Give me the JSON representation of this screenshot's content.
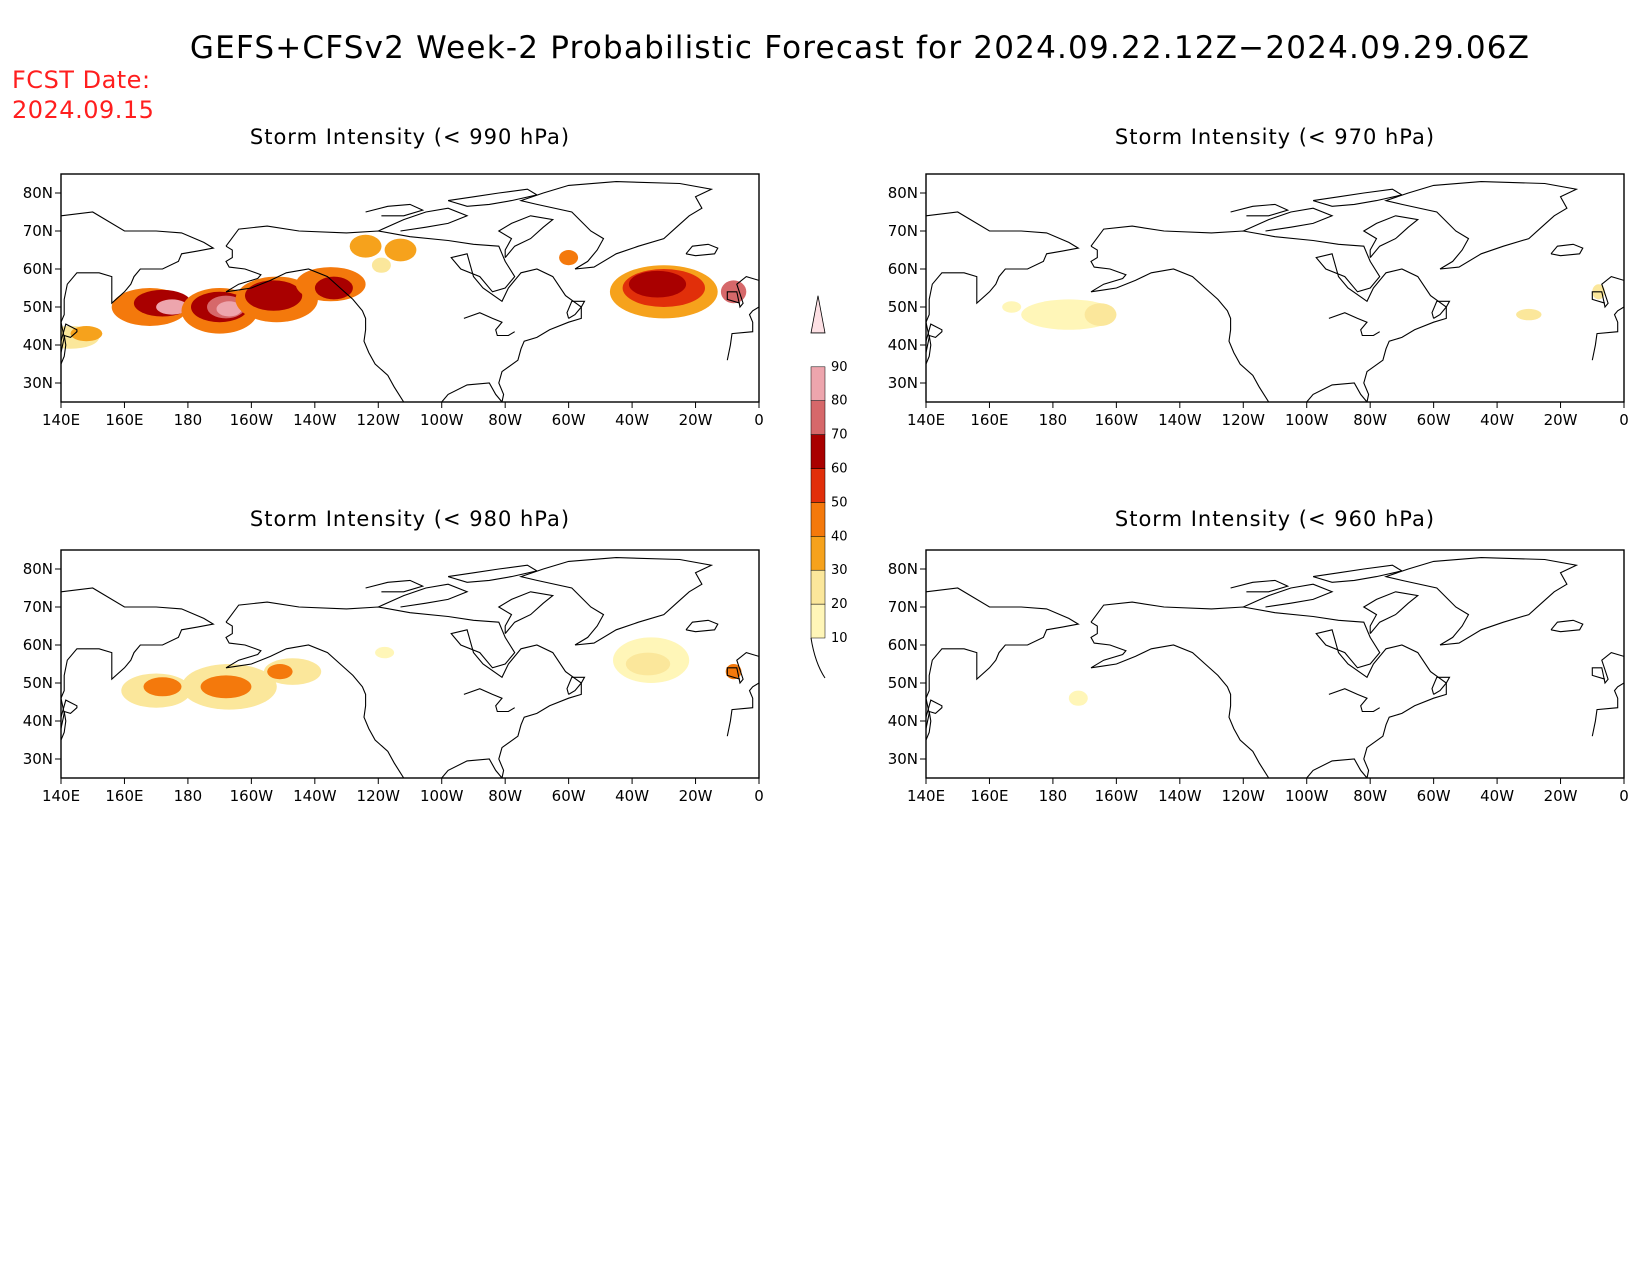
{
  "title": "GEFS+CFSv2 Week-2 Probabilistic Forecast for 2024.09.22.12Z−2024.09.29.06Z",
  "forecast_date": {
    "label": "FCST Date:",
    "value": "2024.09.15"
  },
  "colors": {
    "10": "#fff6b8",
    "20": "#fbe79b",
    "30": "#f6a21c",
    "40": "#f4790c",
    "50": "#e12f0a",
    "60": "#a90000",
    "70": "#d6686a",
    "80": "#eda5ad",
    "90": "#fde0e4"
  },
  "colorbar": {
    "labels": [
      "10",
      "20",
      "30",
      "40",
      "50",
      "60",
      "70",
      "80",
      "90"
    ],
    "colors": [
      "#fff6b8",
      "#fbe79b",
      "#f6a21c",
      "#f4790c",
      "#e12f0a",
      "#a90000",
      "#d6686a",
      "#eda5ad",
      "#fde0e4"
    ]
  },
  "lon_ticks": [
    "140E",
    "160E",
    "180",
    "160W",
    "140W",
    "120W",
    "100W",
    "80W",
    "60W",
    "40W",
    "20W",
    "0"
  ],
  "lat_ticks": [
    "80N",
    "70N",
    "60N",
    "50N",
    "40N",
    "30N"
  ],
  "map_extent": {
    "lon_start": 140,
    "lon_end": 360,
    "lat_min": 25,
    "lat_max": 85
  },
  "panels": [
    {
      "id": "p990",
      "title": "Storm Intensity (< 990 hPa)",
      "regions": [
        {
          "lon": 143,
          "lat": 42,
          "rx": 9,
          "ry": 3,
          "level": "20"
        },
        {
          "lon": 148,
          "lat": 43,
          "rx": 5,
          "ry": 2,
          "level": "30"
        },
        {
          "lon": 168,
          "lat": 50,
          "rx": 12,
          "ry": 5,
          "level": "40"
        },
        {
          "lon": 172,
          "lat": 51,
          "rx": 9,
          "ry": 3.5,
          "level": "60"
        },
        {
          "lon": 175,
          "lat": 50,
          "rx": 5,
          "ry": 2,
          "level": "80"
        },
        {
          "lon": 190,
          "lat": 49,
          "rx": 12,
          "ry": 6,
          "level": "40"
        },
        {
          "lon": 190,
          "lat": 50,
          "rx": 9,
          "ry": 4,
          "level": "60"
        },
        {
          "lon": 192,
          "lat": 50,
          "rx": 6,
          "ry": 3,
          "level": "70"
        },
        {
          "lon": 193,
          "lat": 49.5,
          "rx": 4,
          "ry": 2,
          "level": "80"
        },
        {
          "lon": 208,
          "lat": 52,
          "rx": 13,
          "ry": 6,
          "level": "40"
        },
        {
          "lon": 207,
          "lat": 53,
          "rx": 9,
          "ry": 4,
          "level": "60"
        },
        {
          "lon": 225,
          "lat": 56,
          "rx": 11,
          "ry": 4.5,
          "level": "40"
        },
        {
          "lon": 226,
          "lat": 55,
          "rx": 6,
          "ry": 3,
          "level": "60"
        },
        {
          "lon": 236,
          "lat": 66,
          "rx": 5,
          "ry": 3,
          "level": "30"
        },
        {
          "lon": 247,
          "lat": 65,
          "rx": 5,
          "ry": 3,
          "level": "30"
        },
        {
          "lon": 241,
          "lat": 61,
          "rx": 3,
          "ry": 2,
          "level": "20"
        },
        {
          "lon": 300,
          "lat": 63,
          "rx": 3,
          "ry": 2,
          "level": "40"
        },
        {
          "lon": 330,
          "lat": 54,
          "rx": 17,
          "ry": 7,
          "level": "30"
        },
        {
          "lon": 330,
          "lat": 55,
          "rx": 13,
          "ry": 5,
          "level": "50"
        },
        {
          "lon": 328,
          "lat": 56,
          "rx": 9,
          "ry": 3.5,
          "level": "60"
        },
        {
          "lon": 352,
          "lat": 54,
          "rx": 4,
          "ry": 3,
          "level": "70"
        }
      ]
    },
    {
      "id": "p970",
      "title": "Storm Intensity (< 970 hPa)",
      "regions": [
        {
          "lon": 167,
          "lat": 50,
          "rx": 3,
          "ry": 1.5,
          "level": "10"
        },
        {
          "lon": 185,
          "lat": 48,
          "rx": 15,
          "ry": 4,
          "level": "10"
        },
        {
          "lon": 195,
          "lat": 48,
          "rx": 5,
          "ry": 3,
          "level": "20"
        },
        {
          "lon": 330,
          "lat": 48,
          "rx": 4,
          "ry": 1.5,
          "level": "20"
        },
        {
          "lon": 352,
          "lat": 54,
          "rx": 2,
          "ry": 2,
          "level": "20"
        }
      ]
    },
    {
      "id": "p980",
      "title": "Storm Intensity (< 980 hPa)",
      "regions": [
        {
          "lon": 170,
          "lat": 48,
          "rx": 11,
          "ry": 4.5,
          "level": "20"
        },
        {
          "lon": 172,
          "lat": 49,
          "rx": 6,
          "ry": 2.5,
          "level": "40"
        },
        {
          "lon": 193,
          "lat": 49,
          "rx": 15,
          "ry": 6,
          "level": "20"
        },
        {
          "lon": 192,
          "lat": 49,
          "rx": 8,
          "ry": 3,
          "level": "40"
        },
        {
          "lon": 213,
          "lat": 53,
          "rx": 9,
          "ry": 3.5,
          "level": "20"
        },
        {
          "lon": 209,
          "lat": 53,
          "rx": 4,
          "ry": 2,
          "level": "40"
        },
        {
          "lon": 326,
          "lat": 56,
          "rx": 12,
          "ry": 6,
          "level": "10"
        },
        {
          "lon": 325,
          "lat": 55,
          "rx": 7,
          "ry": 3,
          "level": "20"
        },
        {
          "lon": 352,
          "lat": 53,
          "rx": 2.5,
          "ry": 2,
          "level": "40"
        },
        {
          "lon": 242,
          "lat": 58,
          "rx": 3,
          "ry": 1.5,
          "level": "10"
        }
      ]
    },
    {
      "id": "p960",
      "title": "Storm Intensity (< 960 hPa)",
      "regions": [
        {
          "lon": 188,
          "lat": 46,
          "rx": 3,
          "ry": 2,
          "level": "10"
        }
      ]
    }
  ]
}
